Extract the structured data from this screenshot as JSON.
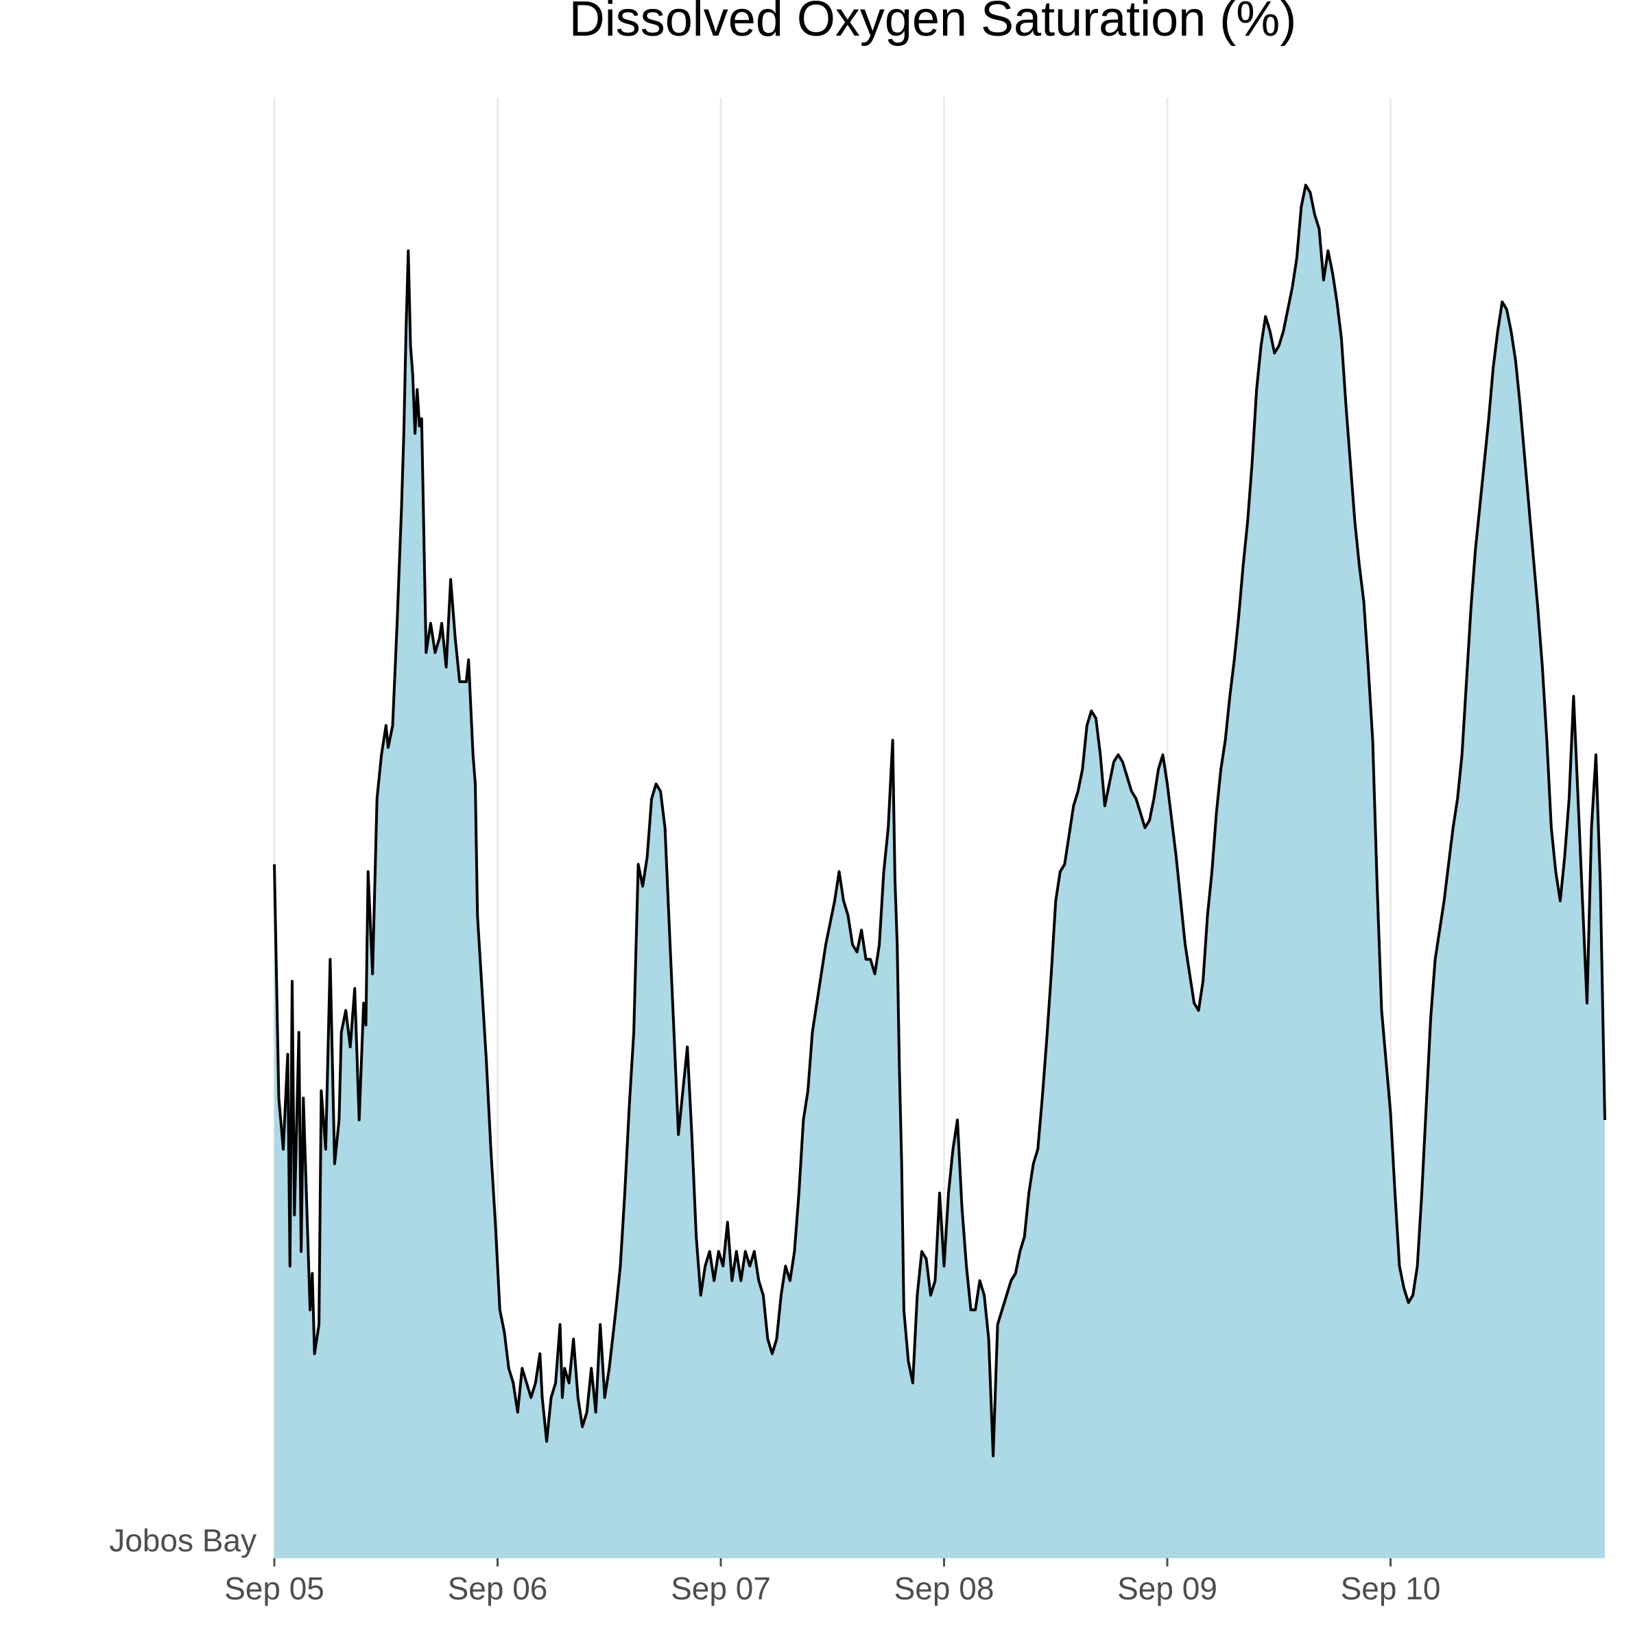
{
  "colors": {
    "fill": "#add8e6",
    "line": "#000000"
  },
  "chart_data": {
    "type": "area",
    "title": "Dissolved Oxygen Saturation (%)",
    "xlabel": "",
    "ylabel": "",
    "y_category": "Jobos Bay",
    "x_tick_labels": [
      "Sep 05",
      "Sep 06",
      "Sep 07",
      "Sep 08",
      "Sep 09",
      "Sep 10"
    ],
    "x_unit": "days from Sep 05 00:00",
    "xlim": [
      0,
      5.96
    ],
    "ylim": [
      0,
      100
    ],
    "grid": "vertical",
    "series": [
      {
        "points": [
          [
            0.0,
            47.5
          ],
          [
            0.02,
            31.5
          ],
          [
            0.04,
            28
          ],
          [
            0.06,
            34.5
          ],
          [
            0.07,
            20
          ],
          [
            0.08,
            39.5
          ],
          [
            0.09,
            23.5
          ],
          [
            0.11,
            36
          ],
          [
            0.12,
            21
          ],
          [
            0.13,
            31.5
          ],
          [
            0.16,
            17
          ],
          [
            0.17,
            19.5
          ],
          [
            0.18,
            14
          ],
          [
            0.2,
            16
          ],
          [
            0.21,
            32
          ],
          [
            0.23,
            28
          ],
          [
            0.25,
            41
          ],
          [
            0.27,
            27
          ],
          [
            0.29,
            30
          ],
          [
            0.3,
            36
          ],
          [
            0.32,
            37.5
          ],
          [
            0.34,
            35
          ],
          [
            0.36,
            39
          ],
          [
            0.38,
            30
          ],
          [
            0.4,
            38
          ],
          [
            0.41,
            36.5
          ],
          [
            0.42,
            47
          ],
          [
            0.44,
            40
          ],
          [
            0.46,
            52
          ],
          [
            0.48,
            55
          ],
          [
            0.5,
            57
          ],
          [
            0.51,
            55.5
          ],
          [
            0.53,
            57
          ],
          [
            0.55,
            64
          ],
          [
            0.57,
            72
          ],
          [
            0.58,
            77
          ],
          [
            0.59,
            84
          ],
          [
            0.6,
            89.5
          ],
          [
            0.61,
            83
          ],
          [
            0.62,
            81
          ],
          [
            0.63,
            77
          ],
          [
            0.64,
            80
          ],
          [
            0.65,
            77.5
          ],
          [
            0.66,
            78
          ],
          [
            0.68,
            62
          ],
          [
            0.7,
            64
          ],
          [
            0.72,
            62
          ],
          [
            0.74,
            63
          ],
          [
            0.75,
            64
          ],
          [
            0.77,
            61
          ],
          [
            0.79,
            67
          ],
          [
            0.81,
            63
          ],
          [
            0.83,
            60
          ],
          [
            0.84,
            60
          ],
          [
            0.86,
            60
          ],
          [
            0.87,
            61.5
          ],
          [
            0.89,
            55
          ],
          [
            0.9,
            53
          ],
          [
            0.91,
            44
          ],
          [
            0.93,
            39
          ],
          [
            0.95,
            34
          ],
          [
            0.97,
            28
          ],
          [
            0.99,
            23
          ],
          [
            1.01,
            17
          ],
          [
            1.03,
            15.5
          ],
          [
            1.05,
            13
          ],
          [
            1.07,
            12
          ],
          [
            1.09,
            10
          ],
          [
            1.11,
            13
          ],
          [
            1.13,
            12
          ],
          [
            1.15,
            11
          ],
          [
            1.17,
            12
          ],
          [
            1.19,
            14
          ],
          [
            1.2,
            11
          ],
          [
            1.22,
            8
          ],
          [
            1.24,
            11
          ],
          [
            1.26,
            12
          ],
          [
            1.28,
            16
          ],
          [
            1.29,
            11
          ],
          [
            1.3,
            13
          ],
          [
            1.32,
            12
          ],
          [
            1.34,
            15
          ],
          [
            1.36,
            11
          ],
          [
            1.38,
            9
          ],
          [
            1.4,
            10
          ],
          [
            1.42,
            13
          ],
          [
            1.44,
            10
          ],
          [
            1.46,
            16
          ],
          [
            1.48,
            11
          ],
          [
            1.5,
            13
          ],
          [
            1.53,
            17
          ],
          [
            1.55,
            20
          ],
          [
            1.57,
            25
          ],
          [
            1.59,
            31
          ],
          [
            1.61,
            36
          ],
          [
            1.63,
            47.5
          ],
          [
            1.65,
            46
          ],
          [
            1.67,
            48
          ],
          [
            1.69,
            52
          ],
          [
            1.71,
            53
          ],
          [
            1.73,
            52.5
          ],
          [
            1.75,
            50
          ],
          [
            1.77,
            43
          ],
          [
            1.79,
            36
          ],
          [
            1.81,
            29
          ],
          [
            1.83,
            32
          ],
          [
            1.85,
            35
          ],
          [
            1.87,
            29
          ],
          [
            1.89,
            22
          ],
          [
            1.91,
            18
          ],
          [
            1.93,
            20
          ],
          [
            1.95,
            21
          ],
          [
            1.97,
            19
          ],
          [
            1.99,
            21
          ],
          [
            2.01,
            20
          ],
          [
            2.03,
            23
          ],
          [
            2.05,
            19
          ],
          [
            2.07,
            21
          ],
          [
            2.09,
            19
          ],
          [
            2.11,
            21
          ],
          [
            2.13,
            20
          ],
          [
            2.15,
            21
          ],
          [
            2.17,
            19
          ],
          [
            2.19,
            18
          ],
          [
            2.21,
            15
          ],
          [
            2.23,
            14
          ],
          [
            2.25,
            15
          ],
          [
            2.27,
            18
          ],
          [
            2.29,
            20
          ],
          [
            2.31,
            19
          ],
          [
            2.33,
            21
          ],
          [
            2.35,
            25
          ],
          [
            2.37,
            30
          ],
          [
            2.39,
            32
          ],
          [
            2.41,
            36
          ],
          [
            2.43,
            38
          ],
          [
            2.45,
            40
          ],
          [
            2.47,
            42
          ],
          [
            2.49,
            43.5
          ],
          [
            2.51,
            45
          ],
          [
            2.53,
            47
          ],
          [
            2.55,
            45
          ],
          [
            2.57,
            44
          ],
          [
            2.59,
            42
          ],
          [
            2.61,
            41.5
          ],
          [
            2.63,
            43
          ],
          [
            2.65,
            41
          ],
          [
            2.67,
            41
          ],
          [
            2.69,
            40
          ],
          [
            2.71,
            42
          ],
          [
            2.73,
            47
          ],
          [
            2.75,
            50
          ],
          [
            2.77,
            56
          ],
          [
            2.78,
            46.5
          ],
          [
            2.79,
            42
          ],
          [
            2.8,
            33.5
          ],
          [
            2.81,
            27
          ],
          [
            2.82,
            17
          ],
          [
            2.84,
            13.5
          ],
          [
            2.86,
            12
          ],
          [
            2.88,
            18
          ],
          [
            2.9,
            21
          ],
          [
            2.92,
            20.5
          ],
          [
            2.94,
            18
          ],
          [
            2.96,
            19
          ],
          [
            2.98,
            25
          ],
          [
            3.0,
            20
          ],
          [
            3.02,
            25
          ],
          [
            3.04,
            28
          ],
          [
            3.06,
            30
          ],
          [
            3.08,
            24
          ],
          [
            3.1,
            20
          ],
          [
            3.12,
            17
          ],
          [
            3.14,
            17
          ],
          [
            3.16,
            19
          ],
          [
            3.18,
            18
          ],
          [
            3.2,
            15
          ],
          [
            3.22,
            7
          ],
          [
            3.24,
            16
          ],
          [
            3.26,
            17
          ],
          [
            3.28,
            18
          ],
          [
            3.3,
            19
          ],
          [
            3.32,
            19.5
          ],
          [
            3.34,
            21
          ],
          [
            3.36,
            22
          ],
          [
            3.38,
            25
          ],
          [
            3.4,
            27
          ],
          [
            3.42,
            28
          ],
          [
            3.44,
            31.5
          ],
          [
            3.46,
            35.5
          ],
          [
            3.48,
            40
          ],
          [
            3.5,
            45
          ],
          [
            3.52,
            47
          ],
          [
            3.54,
            47.5
          ],
          [
            3.56,
            49.5
          ],
          [
            3.58,
            51.5
          ],
          [
            3.6,
            52.5
          ],
          [
            3.62,
            54
          ],
          [
            3.64,
            57
          ],
          [
            3.66,
            58
          ],
          [
            3.68,
            57.5
          ],
          [
            3.7,
            55
          ],
          [
            3.72,
            51.5
          ],
          [
            3.74,
            53
          ],
          [
            3.76,
            54.5
          ],
          [
            3.78,
            55
          ],
          [
            3.8,
            54.5
          ],
          [
            3.82,
            53.5
          ],
          [
            3.84,
            52.5
          ],
          [
            3.86,
            52
          ],
          [
            3.88,
            51
          ],
          [
            3.9,
            50
          ],
          [
            3.92,
            50.5
          ],
          [
            3.94,
            52
          ],
          [
            3.96,
            54
          ],
          [
            3.98,
            55
          ],
          [
            4.0,
            53
          ],
          [
            4.02,
            50.5
          ],
          [
            4.04,
            48
          ],
          [
            4.06,
            45
          ],
          [
            4.08,
            42
          ],
          [
            4.1,
            40
          ],
          [
            4.12,
            38
          ],
          [
            4.14,
            37.5
          ],
          [
            4.16,
            39.5
          ],
          [
            4.18,
            44
          ],
          [
            4.2,
            47
          ],
          [
            4.22,
            51
          ],
          [
            4.24,
            54
          ],
          [
            4.26,
            56
          ],
          [
            4.28,
            59
          ],
          [
            4.3,
            61.5
          ],
          [
            4.32,
            64.5
          ],
          [
            4.34,
            68
          ],
          [
            4.36,
            71
          ],
          [
            4.38,
            75
          ],
          [
            4.4,
            80
          ],
          [
            4.42,
            83
          ],
          [
            4.44,
            85
          ],
          [
            4.46,
            84
          ],
          [
            4.48,
            82.5
          ],
          [
            4.5,
            83
          ],
          [
            4.52,
            84
          ],
          [
            4.54,
            85.5
          ],
          [
            4.56,
            87
          ],
          [
            4.58,
            89
          ],
          [
            4.6,
            92.5
          ],
          [
            4.62,
            94
          ],
          [
            4.64,
            93.5
          ],
          [
            4.66,
            92
          ],
          [
            4.68,
            91
          ],
          [
            4.7,
            87.5
          ],
          [
            4.72,
            89.5
          ],
          [
            4.74,
            88
          ],
          [
            4.76,
            86
          ],
          [
            4.78,
            83.5
          ],
          [
            4.8,
            79
          ],
          [
            4.82,
            75
          ],
          [
            4.84,
            71
          ],
          [
            4.86,
            68
          ],
          [
            4.88,
            65.5
          ],
          [
            4.9,
            61
          ],
          [
            4.92,
            56
          ],
          [
            4.94,
            46
          ],
          [
            4.96,
            37.5
          ],
          [
            4.98,
            34
          ],
          [
            5.0,
            30.5
          ],
          [
            5.02,
            25
          ],
          [
            5.04,
            20
          ],
          [
            5.06,
            18.5
          ],
          [
            5.08,
            17.5
          ],
          [
            5.1,
            18
          ],
          [
            5.12,
            20
          ],
          [
            5.14,
            25
          ],
          [
            5.16,
            31
          ],
          [
            5.18,
            37
          ],
          [
            5.2,
            41
          ],
          [
            5.22,
            43
          ],
          [
            5.24,
            45
          ],
          [
            5.26,
            47.5
          ],
          [
            5.28,
            50
          ],
          [
            5.3,
            52
          ],
          [
            5.32,
            55
          ],
          [
            5.34,
            60
          ],
          [
            5.36,
            65
          ],
          [
            5.38,
            69
          ],
          [
            5.4,
            72
          ],
          [
            5.42,
            75
          ],
          [
            5.44,
            78
          ],
          [
            5.46,
            81.5
          ],
          [
            5.48,
            84
          ],
          [
            5.5,
            86
          ],
          [
            5.52,
            85.5
          ],
          [
            5.54,
            84
          ],
          [
            5.56,
            82
          ],
          [
            5.58,
            79
          ],
          [
            5.6,
            75.5
          ],
          [
            5.62,
            72
          ],
          [
            5.64,
            68.5
          ],
          [
            5.66,
            65
          ],
          [
            5.68,
            61
          ],
          [
            5.7,
            56
          ],
          [
            5.72,
            50
          ],
          [
            5.74,
            47
          ],
          [
            5.76,
            45
          ],
          [
            5.78,
            48
          ],
          [
            5.8,
            52
          ],
          [
            5.82,
            59
          ],
          [
            5.84,
            52
          ],
          [
            5.86,
            45
          ],
          [
            5.88,
            38
          ],
          [
            5.9,
            50
          ],
          [
            5.92,
            55
          ],
          [
            5.94,
            46
          ],
          [
            5.96,
            30
          ]
        ]
      }
    ]
  }
}
